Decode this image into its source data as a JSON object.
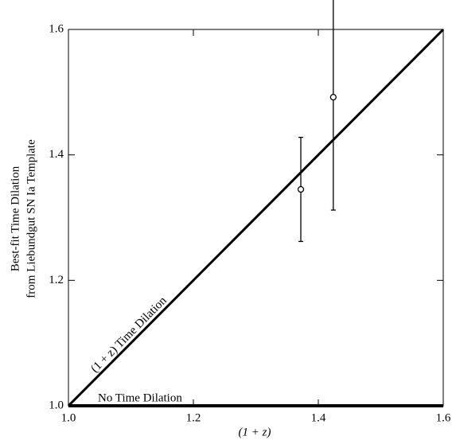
{
  "chart_data": {
    "type": "scatter",
    "xlabel": "(1 + z)",
    "ylabel": [
      "Best-fit Time Dilation",
      "from Liebundgut SN Ia Template"
    ],
    "xlim": [
      1.0,
      1.6
    ],
    "ylim": [
      1.0,
      1.6
    ],
    "xticks": [
      {
        "value": 1.0,
        "label": "1.0"
      },
      {
        "value": 1.2,
        "label": "1.2"
      },
      {
        "value": 1.4,
        "label": "1.4"
      },
      {
        "value": 1.6,
        "label": "1.6"
      }
    ],
    "yticks": [
      {
        "value": 1.0,
        "label": "1.0"
      },
      {
        "value": 1.2,
        "label": "1.2"
      },
      {
        "value": 1.4,
        "label": "1.4"
      },
      {
        "value": 1.6,
        "label": "1.6"
      }
    ],
    "lines": [
      {
        "name": "(1 + z) Time Dilation",
        "color": "#000000",
        "x": [
          1.0,
          1.6
        ],
        "values": [
          1.0,
          1.6
        ]
      },
      {
        "name": "No Time Dilation",
        "color": "#000000",
        "x": [
          1.0,
          1.6
        ],
        "values": [
          1.0,
          1.0
        ]
      }
    ],
    "points": {
      "color": "#000000",
      "x": [
        1.372,
        1.424
      ],
      "values": [
        1.345,
        1.492
      ],
      "errors": [
        0.083,
        0.18
      ]
    }
  }
}
